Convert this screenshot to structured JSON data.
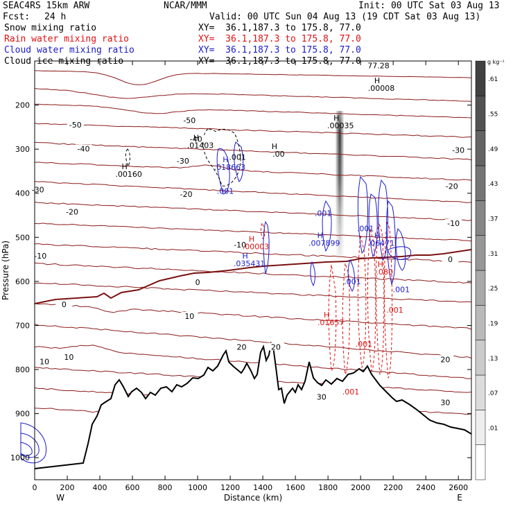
{
  "header": {
    "model": "SEAC4RS 15km ARW",
    "center": "NCAR/MMM",
    "init": "Init: 00 UTC Sat 03 Aug 13",
    "fcst_label": "Fcst:",
    "fcst_value": "24 h",
    "valid": "Valid: 00 UTC Sun 04 Aug 13 (19 CDT Sat 03 Aug 13)"
  },
  "fields": [
    {
      "name": "Snow mixing ratio",
      "xy": "XY=  36.1,187.3 to 175.8, 77.0",
      "color": "#000000"
    },
    {
      "name": "Rain water mixing ratio",
      "xy": "XY=  36.1,187.3 to 175.8, 77.0",
      "color": "#e01010"
    },
    {
      "name": "Cloud water mixing ratio",
      "xy": "XY=  36.1,187.3 to 175.8, 77.0",
      "color": "#1a1acc"
    },
    {
      "name": "Cloud ice mixing ratio",
      "xy": "XY=  36.1,187.3 to 175.8, 77.0",
      "color": "#000000"
    }
  ],
  "chart_data": {
    "type": "cross-section",
    "xlabel": "Distance (km)",
    "ylabel": "Pressure (hPa)",
    "xlim": [
      0,
      2680
    ],
    "ylim": [
      1050,
      100
    ],
    "x_ticks": [
      0,
      200,
      400,
      600,
      800,
      1000,
      1200,
      1400,
      1600,
      1800,
      2000,
      2200,
      2400,
      2600
    ],
    "y_ticks": [
      200,
      300,
      400,
      500,
      600,
      700,
      800,
      900,
      1000
    ],
    "x_end_labels": [
      "W",
      "E"
    ],
    "colorbar": {
      "unit": "g kg⁻¹",
      "levels": [
        ".01",
        ".07",
        ".13",
        ".19",
        ".25",
        ".31",
        ".37",
        ".43",
        ".49",
        ".55",
        ".61"
      ]
    },
    "temperature_labels": [
      {
        "text": "-50",
        "x": 250,
        "p": 248
      },
      {
        "text": "-50",
        "x": 950,
        "p": 238
      },
      {
        "text": "-40",
        "x": 300,
        "p": 302
      },
      {
        "text": "-40",
        "x": 990,
        "p": 280
      },
      {
        "text": "-30",
        "x": 20,
        "p": 395
      },
      {
        "text": "-30",
        "x": 910,
        "p": 330
      },
      {
        "text": "-30",
        "x": 2600,
        "p": 305
      },
      {
        "text": "-20",
        "x": 230,
        "p": 445
      },
      {
        "text": "-20",
        "x": 930,
        "p": 405
      },
      {
        "text": "-20",
        "x": 2560,
        "p": 387
      },
      {
        "text": "-10",
        "x": 35,
        "p": 545
      },
      {
        "text": "-10",
        "x": 1260,
        "p": 520
      },
      {
        "text": "-10",
        "x": 2570,
        "p": 471
      },
      {
        "text": "0",
        "x": 180,
        "p": 655
      },
      {
        "text": "0",
        "x": 1000,
        "p": 605
      },
      {
        "text": "0",
        "x": 2550,
        "p": 553
      },
      {
        "text": "10",
        "x": 950,
        "p": 682
      },
      {
        "text": "10",
        "x": 60,
        "p": 785
      },
      {
        "text": "10",
        "x": 210,
        "p": 775
      },
      {
        "text": "20",
        "x": 1270,
        "p": 752
      },
      {
        "text": "20",
        "x": 1480,
        "p": 752
      },
      {
        "text": "20",
        "x": 2520,
        "p": 780
      },
      {
        "text": "30",
        "x": 1760,
        "p": 865
      },
      {
        "text": "30",
        "x": 2520,
        "p": 878
      }
    ],
    "top_value": {
      "text": "77.28",
      "x": 2110,
      "p": 110
    },
    "maxima": [
      {
        "label": "H",
        "value": ".00160",
        "x": 560,
        "p": 345,
        "color": "#000000"
      },
      {
        "label": "H",
        "value": ".01403",
        "x": 1000,
        "p": 280,
        "color": "#000000"
      },
      {
        "label": "H",
        "value": ".00",
        "x": 1480,
        "p": 300,
        "color": "#000000"
      },
      {
        "label": "H",
        "value": ".00035",
        "x": 1860,
        "p": 235,
        "color": "#000000"
      },
      {
        "label": "H",
        "value": ".00008",
        "x": 2110,
        "p": 150,
        "color": "#000000"
      },
      {
        "label": "H",
        "value": ".018663",
        "x": 1180,
        "p": 330,
        "color": "#1a1acc"
      },
      {
        "label": "H",
        "value": ".035431",
        "x": 1300,
        "p": 548,
        "color": "#1a1acc"
      },
      {
        "label": "H",
        "value": ".007899",
        "x": 1760,
        "p": 502,
        "color": "#1a1acc"
      },
      {
        "label": "H",
        "value": ".00003",
        "x": 1340,
        "p": 510,
        "color": "#e01010"
      },
      {
        "label": "H",
        "value": ".01657",
        "x": 1800,
        "p": 682,
        "color": "#e01010"
      },
      {
        "label": "H",
        "value": ".06471",
        "x": 2110,
        "p": 502,
        "color": "#1a1acc"
      },
      {
        "label": "H",
        "value": ".080",
        "x": 2130,
        "p": 567,
        "color": "#e01010"
      }
    ],
    "contour_value_labels": [
      {
        "text": ".001",
        "x": 1245,
        "p": 318,
        "color": "#000000"
      },
      {
        "text": ".001",
        "x": 1170,
        "p": 395,
        "color": "#1a1acc"
      },
      {
        "text": ".001",
        "x": 1770,
        "p": 445,
        "color": "#1a1acc"
      },
      {
        "text": ".001",
        "x": 2030,
        "p": 480,
        "color": "#1a1acc"
      },
      {
        "text": ".001",
        "x": 1950,
        "p": 600,
        "color": "#1a1acc"
      },
      {
        "text": ".001",
        "x": 2250,
        "p": 618,
        "color": "#1a1acc"
      },
      {
        "text": ".001",
        "x": 2210,
        "p": 665,
        "color": "#e01010"
      },
      {
        "text": ".001",
        "x": 2020,
        "p": 742,
        "color": "#e01010"
      },
      {
        "text": ".001",
        "x": 1940,
        "p": 850,
        "color": "#e01010"
      }
    ]
  }
}
